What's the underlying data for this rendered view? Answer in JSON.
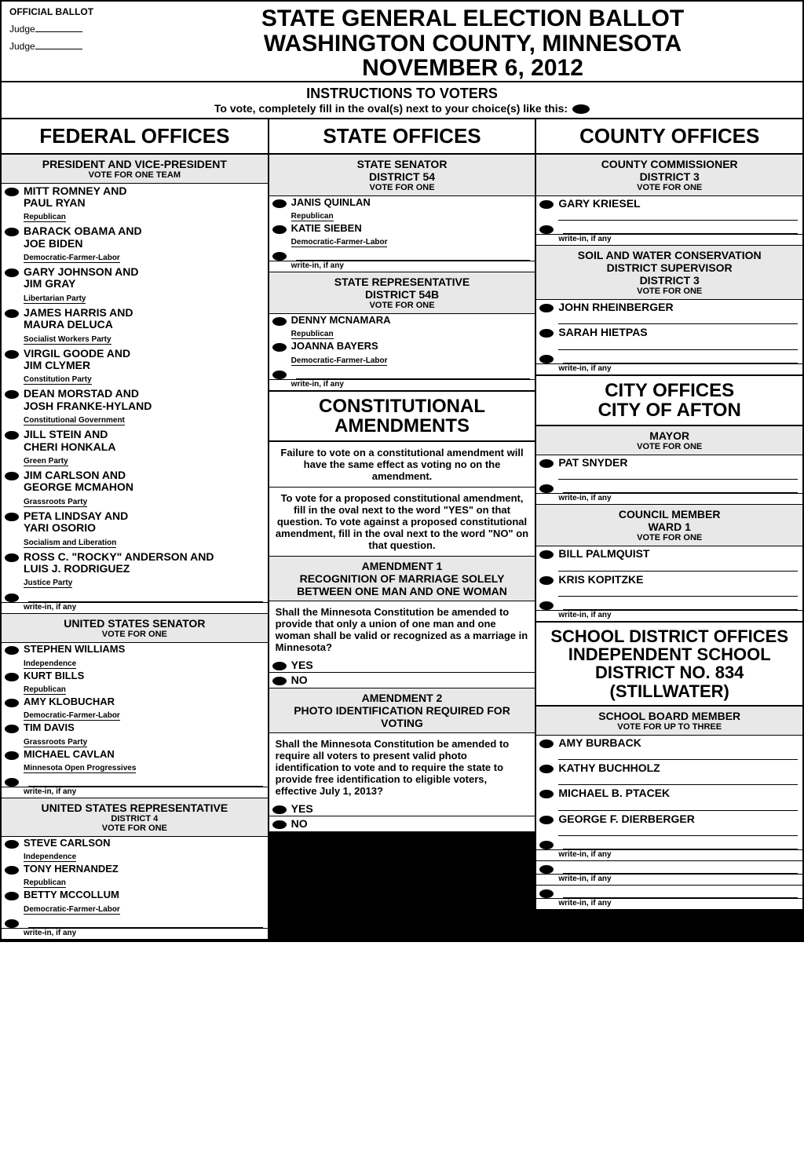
{
  "header": {
    "official": "OFFICIAL BALLOT",
    "judge": "Judge",
    "title1": "STATE GENERAL ELECTION BALLOT",
    "title2": "WASHINGTON COUNTY, MINNESOTA",
    "title3": "NOVEMBER 6, 2012"
  },
  "instructions": {
    "t1": "INSTRUCTIONS TO VOTERS",
    "t2": "To vote, completely fill in the oval(s) next to your choice(s) like this:"
  },
  "writein": "write-in, if any",
  "col1": {
    "title": "FEDERAL OFFICES",
    "president": {
      "h1": "PRESIDENT AND VICE-PRESIDENT",
      "h2": "VOTE FOR ONE TEAM",
      "c": [
        {
          "n1": "MITT ROMNEY AND",
          "n2": "PAUL RYAN",
          "p": "Republican"
        },
        {
          "n1": "BARACK OBAMA AND",
          "n2": "JOE BIDEN",
          "p": "Democratic-Farmer-Labor"
        },
        {
          "n1": "GARY JOHNSON AND",
          "n2": "JIM GRAY",
          "p": "Libertarian Party"
        },
        {
          "n1": "JAMES HARRIS AND",
          "n2": "MAURA DELUCA",
          "p": "Socialist Workers Party"
        },
        {
          "n1": "VIRGIL GOODE AND",
          "n2": "JIM CLYMER",
          "p": "Constitution Party"
        },
        {
          "n1": "DEAN MORSTAD AND",
          "n2": "JOSH FRANKE-HYLAND",
          "p": "Constitutional Government"
        },
        {
          "n1": "JILL STEIN AND",
          "n2": "CHERI HONKALA",
          "p": "Green Party"
        },
        {
          "n1": "JIM CARLSON AND",
          "n2": "GEORGE MCMAHON",
          "p": "Grassroots Party"
        },
        {
          "n1": "PETA LINDSAY AND",
          "n2": "YARI OSORIO",
          "p": "Socialism and Liberation"
        },
        {
          "n1": "ROSS C. \"ROCKY\" ANDERSON AND",
          "n2": "LUIS J. RODRIGUEZ",
          "p": "Justice Party"
        }
      ]
    },
    "senator": {
      "h1": "UNITED  STATES SENATOR",
      "h2": "VOTE FOR ONE",
      "c": [
        {
          "n": "STEPHEN WILLIAMS",
          "p": "Independence"
        },
        {
          "n": "KURT BILLS",
          "p": "Republican"
        },
        {
          "n": "AMY KLOBUCHAR",
          "p": "Democratic-Farmer-Labor"
        },
        {
          "n": "TIM DAVIS",
          "p": "Grassroots Party"
        },
        {
          "n": "MICHAEL CAVLAN",
          "p": "Minnesota Open Progressives"
        }
      ]
    },
    "rep": {
      "h1": "UNITED STATES REPRESENTATIVE",
      "h2": "DISTRICT 4",
      "h3": "VOTE FOR ONE",
      "c": [
        {
          "n": "STEVE CARLSON",
          "p": "Independence"
        },
        {
          "n": "TONY HERNANDEZ",
          "p": "Republican"
        },
        {
          "n": "BETTY MCCOLLUM",
          "p": "Democratic-Farmer-Labor"
        }
      ]
    }
  },
  "col2": {
    "title": "STATE OFFICES",
    "senator": {
      "h1": "STATE SENATOR",
      "h2": "DISTRICT 54",
      "h3": "VOTE FOR ONE",
      "c": [
        {
          "n": "JANIS QUINLAN",
          "p": "Republican"
        },
        {
          "n": "KATIE SIEBEN",
          "p": "Democratic-Farmer-Labor"
        }
      ]
    },
    "rep": {
      "h1": "STATE REPRESENTATIVE",
      "h2": "DISTRICT 54B",
      "h3": "VOTE FOR ONE",
      "c": [
        {
          "n": "DENNY MCNAMARA",
          "p": "Republican"
        },
        {
          "n": "JOANNA BAYERS",
          "p": "Democratic-Farmer-Labor"
        }
      ]
    },
    "amendtitle": "CONSTITUTIONAL AMENDMENTS",
    "amendnote": "Failure to vote on a constitutional amendment will have the same effect as voting no on the amendment.",
    "amendinstr": "To vote for a proposed constitutional amendment, fill in the oval next to the word \"YES\" on that question. To vote against a proposed constitutional amendment, fill in the oval next to the word \"NO\" on that question.",
    "a1": {
      "h1": "AMENDMENT 1",
      "h2": "RECOGNITION OF MARRIAGE SOLELY BETWEEN ONE MAN AND ONE WOMAN",
      "q": "Shall the Minnesota Constitution be amended to provide that only a union of one man and one woman shall be valid or recognized as a marriage in Minnesota?"
    },
    "a2": {
      "h1": "AMENDMENT 2",
      "h2": "PHOTO IDENTIFICATION REQUIRED FOR VOTING",
      "q": "Shall the Minnesota Constitution be amended to require all voters to present valid photo identification to vote and to require the state to provide free identification to eligible voters, effective July 1, 2013?"
    },
    "yes": "YES",
    "no": "NO"
  },
  "col3": {
    "title": "COUNTY OFFICES",
    "commissioner": {
      "h1": "COUNTY COMMISSIONER",
      "h2": "DISTRICT 3",
      "h3": "VOTE FOR ONE",
      "c": [
        {
          "n": "GARY KRIESEL"
        }
      ]
    },
    "soil": {
      "h1": "SOIL AND WATER CONSERVATION",
      "h2": "DISTRICT SUPERVISOR",
      "h3": "DISTRICT 3",
      "h4": "VOTE FOR ONE",
      "c": [
        {
          "n": "JOHN RHEINBERGER"
        },
        {
          "n": "SARAH HIETPAS"
        }
      ]
    },
    "citytitle": "CITY OFFICES CITY OF AFTON",
    "mayor": {
      "h1": "MAYOR",
      "h2": "VOTE FOR ONE",
      "c": [
        {
          "n": "PAT SNYDER"
        }
      ]
    },
    "council": {
      "h1": "COUNCIL MEMBER",
      "h2": "WARD 1",
      "h3": "VOTE FOR ONE",
      "c": [
        {
          "n": "BILL PALMQUIST"
        },
        {
          "n": "KRIS KOPITZKE"
        }
      ]
    },
    "schooltitle": "SCHOOL DISTRICT OFFICES INDEPENDENT SCHOOL DISTRICT NO. 834 (STILLWATER)",
    "school": {
      "h1": "SCHOOL BOARD MEMBER",
      "h2": "VOTE FOR UP TO THREE",
      "c": [
        {
          "n": "AMY BURBACK"
        },
        {
          "n": "KATHY BUCHHOLZ"
        },
        {
          "n": "MICHAEL B. PTACEK"
        },
        {
          "n": "GEORGE F. DIERBERGER"
        }
      ]
    }
  }
}
